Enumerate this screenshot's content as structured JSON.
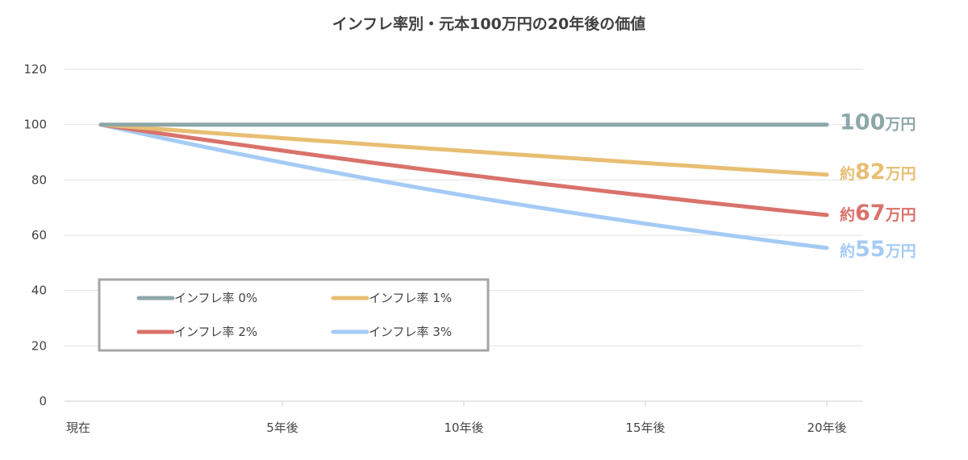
{
  "chart_data": {
    "type": "line",
    "title": "インフレ率別・元本100万円の20年後の価値",
    "x": [
      0,
      5,
      10,
      15,
      20
    ],
    "x_tick_labels": [
      "現在",
      "5年後",
      "10年後",
      "15年後",
      "20年後"
    ],
    "xlim": [
      -1,
      21
    ],
    "ylim": [
      0,
      120
    ],
    "y_ticks": [
      0,
      20,
      40,
      60,
      80,
      100,
      120
    ],
    "grid": "horizontal",
    "legend_position": "bottom-left",
    "series": [
      {
        "name": "インフレ率 0%",
        "color": "#8ea7a9",
        "values": [
          100,
          100,
          100,
          100,
          100
        ],
        "end_label": {
          "prefix": "",
          "value": "100",
          "unit": "万円"
        }
      },
      {
        "name": "インフレ率 1%",
        "color": "#e8be72",
        "values": [
          100,
          95.1,
          90.5,
          86.1,
          81.9
        ],
        "end_label": {
          "prefix": "約",
          "value": "82",
          "unit": "万円"
        }
      },
      {
        "name": "インフレ率 2%",
        "color": "#d9726b",
        "values": [
          100,
          90.6,
          82.0,
          74.3,
          67.3
        ],
        "end_label": {
          "prefix": "約",
          "value": "67",
          "unit": "万円"
        }
      },
      {
        "name": "インフレ率 3%",
        "color": "#a4cbf5",
        "values": [
          100,
          86.3,
          74.4,
          64.2,
          55.4
        ],
        "end_label": {
          "prefix": "約",
          "value": "55",
          "unit": "万円"
        }
      }
    ]
  }
}
